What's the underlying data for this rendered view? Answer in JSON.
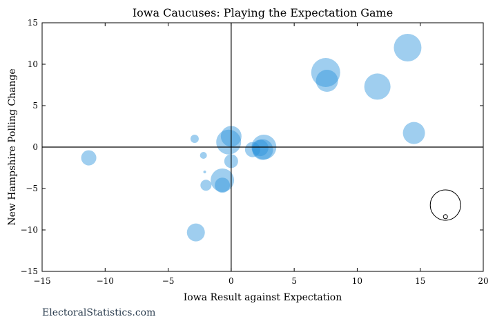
{
  "watermark": "ElectoralStatistics.com",
  "chart_data": {
    "type": "scatter",
    "title": "Iowa Caucuses: Playing the Expectation Game",
    "xlabel": "Iowa Result against Expectation",
    "ylabel": "New Hampshire Polling Change",
    "xlim": [
      -15,
      20
    ],
    "ylim": [
      -15,
      15
    ],
    "xticks": [
      -15,
      -10,
      -5,
      0,
      5,
      10,
      15,
      20
    ],
    "yticks": [
      -15,
      -10,
      -5,
      0,
      5,
      10,
      15
    ],
    "xtick_labels": [
      "−15",
      "−10",
      "−5",
      "0",
      "5",
      "10",
      "15",
      "20"
    ],
    "ytick_labels": [
      "−15",
      "−10",
      "−5",
      "0",
      "5",
      "10",
      "15"
    ],
    "grid": false,
    "reference_lines": {
      "x": 0,
      "y": 0
    },
    "bubble_color": "#2b93dc",
    "bubble_opacity": 0.45,
    "points": [
      {
        "x": 14.0,
        "y": 12.0,
        "size": 20
      },
      {
        "x": 7.5,
        "y": 9.0,
        "size": 21
      },
      {
        "x": 7.6,
        "y": 8.0,
        "size": 16
      },
      {
        "x": 11.6,
        "y": 7.3,
        "size": 19
      },
      {
        "x": 14.5,
        "y": 1.7,
        "size": 16
      },
      {
        "x": 0.0,
        "y": 1.3,
        "size": 15
      },
      {
        "x": -0.2,
        "y": 0.6,
        "size": 18
      },
      {
        "x": 2.6,
        "y": 0.0,
        "size": 18
      },
      {
        "x": 2.3,
        "y": -0.1,
        "size": 12
      },
      {
        "x": 2.5,
        "y": -0.3,
        "size": 15
      },
      {
        "x": 1.7,
        "y": -0.3,
        "size": 11
      },
      {
        "x": 0.0,
        "y": -1.7,
        "size": 10
      },
      {
        "x": -11.3,
        "y": -1.3,
        "size": 11
      },
      {
        "x": -2.9,
        "y": 1.0,
        "size": 6
      },
      {
        "x": -2.2,
        "y": -1.0,
        "size": 5
      },
      {
        "x": -2.1,
        "y": -3.0,
        "size": 2
      },
      {
        "x": -2.0,
        "y": -4.6,
        "size": 8
      },
      {
        "x": -0.7,
        "y": -4.0,
        "size": 17
      },
      {
        "x": -0.7,
        "y": -4.6,
        "size": 11
      },
      {
        "x": -2.8,
        "y": -10.3,
        "size": 13
      }
    ],
    "size_legend": [
      {
        "x": 17.0,
        "y": -7.0,
        "size": 22
      },
      {
        "x": 17.0,
        "y": -8.4,
        "size": 3
      }
    ]
  }
}
